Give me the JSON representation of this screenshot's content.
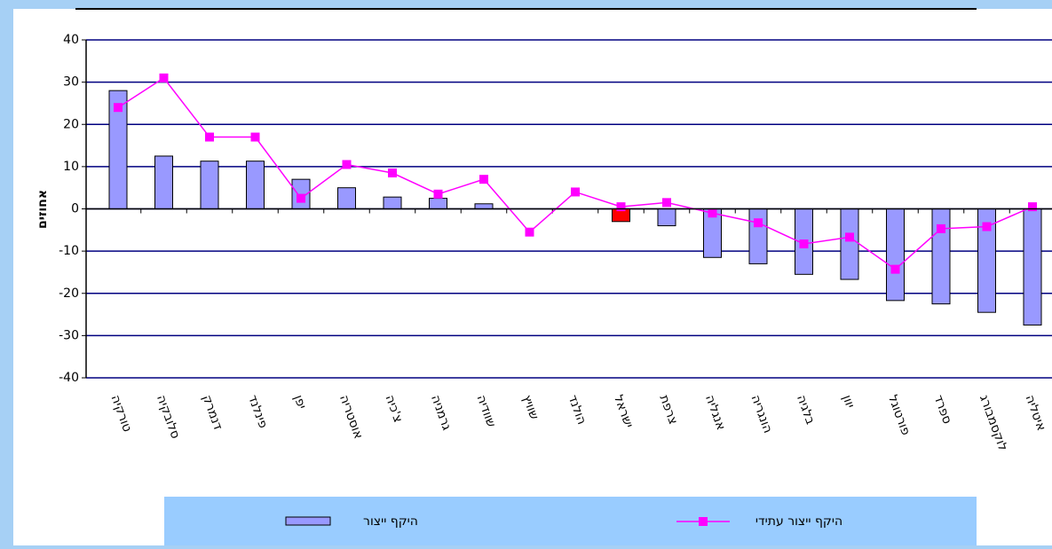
{
  "chart_data": {
    "type": "bar-line",
    "y_label": "אחוזים",
    "categories": [
      "טורקיה",
      "סלובקיה",
      "דנמרק",
      "פינלנד",
      "יפן",
      "אוסטריה",
      "צ'כיה",
      "גרמניה",
      "שוודיה",
      "שוויץ",
      "הולנד",
      "ישראל",
      "צרפת",
      "אנגליה",
      "הונגריה",
      "בלגיה",
      "יוון",
      "פורטוגל",
      "ספרד",
      "לוקסמבורג",
      "איטליה"
    ],
    "series": [
      {
        "name": "היקף ייצור",
        "type": "bar",
        "color": "#9999ff",
        "colors": [
          "#9999ff",
          "#9999ff",
          "#9999ff",
          "#9999ff",
          "#9999ff",
          "#9999ff",
          "#9999ff",
          "#9999ff",
          "#9999ff",
          "#9999ff",
          "#9999ff",
          "#ff0000",
          "#9999ff",
          "#9999ff",
          "#9999ff",
          "#9999ff",
          "#9999ff",
          "#9999ff",
          "#9999ff",
          "#9999ff",
          "#9999ff"
        ],
        "values": [
          28,
          12.5,
          11.3,
          11.3,
          7,
          5,
          2.8,
          2.5,
          1.2,
          null,
          null,
          -3,
          -4,
          -11.5,
          -13,
          -15.5,
          -16.7,
          -21.7,
          -22.5,
          -24.5,
          -27.5
        ]
      },
      {
        "name": "היקף ייצור עתידי",
        "type": "line",
        "color": "#ff00ff",
        "values": [
          24,
          31,
          17,
          17,
          2.5,
          10.5,
          8.5,
          3.5,
          7,
          -5.5,
          4,
          0.5,
          1.5,
          -1,
          -3.3,
          -8.3,
          -6.7,
          -14.3,
          -4.7,
          -4.2,
          0.5
        ]
      }
    ],
    "ylim": [
      -40,
      40
    ],
    "yticks": [
      -40,
      -30,
      -20,
      -10,
      0,
      10,
      20,
      30,
      40
    ],
    "grid": true
  }
}
